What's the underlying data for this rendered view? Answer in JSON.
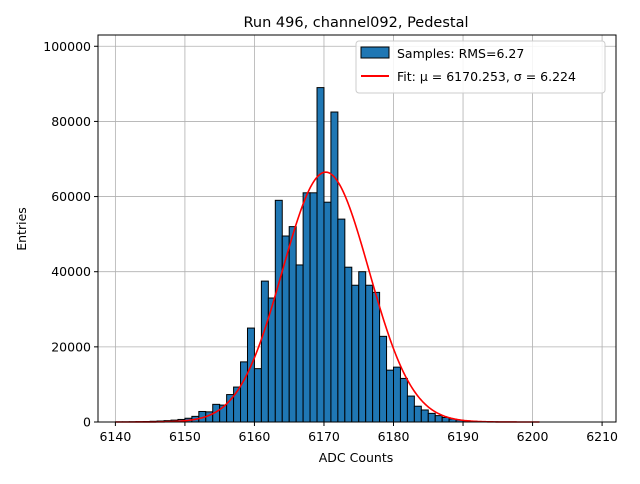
{
  "chart_data": {
    "type": "bar",
    "title": "Run 496, channel092, Pedestal",
    "xlabel": "ADC Counts",
    "ylabel": "Entries",
    "xlim": [
      6137.5,
      6212.0
    ],
    "ylim": [
      0,
      103000
    ],
    "xticks": [
      6140,
      6150,
      6160,
      6170,
      6180,
      6190,
      6200,
      6210
    ],
    "yticks": [
      0,
      20000,
      40000,
      60000,
      80000,
      100000
    ],
    "xtick_labels": [
      "6140",
      "6150",
      "6160",
      "6170",
      "6180",
      "6190",
      "6200",
      "6210"
    ],
    "ytick_labels": [
      "0",
      "20000",
      "40000",
      "60000",
      "80000",
      "100000"
    ],
    "grid": true,
    "legend_position": "top-right",
    "series": [
      {
        "name": "Samples: RMS=6.27",
        "type": "histogram",
        "color": "#1f77b4",
        "edgecolor": "#000000",
        "bin_width": 1,
        "bins": [
          [
            6140,
            30
          ],
          [
            6141,
            40
          ],
          [
            6142,
            60
          ],
          [
            6143,
            90
          ],
          [
            6144,
            130
          ],
          [
            6145,
            190
          ],
          [
            6146,
            260
          ],
          [
            6147,
            360
          ],
          [
            6148,
            500
          ],
          [
            6149,
            680
          ],
          [
            6150,
            1000
          ],
          [
            6151,
            1500
          ],
          [
            6152,
            2800
          ],
          [
            6153,
            2700
          ],
          [
            6154,
            4700
          ],
          [
            6155,
            4500
          ],
          [
            6156,
            7300
          ],
          [
            6157,
            9300
          ],
          [
            6158,
            16000
          ],
          [
            6159,
            25000
          ],
          [
            6160,
            14200
          ],
          [
            6161,
            37500
          ],
          [
            6162,
            33000
          ],
          [
            6163,
            59000
          ],
          [
            6164,
            49500
          ],
          [
            6165,
            52000
          ],
          [
            6166,
            41800
          ],
          [
            6167,
            61000
          ],
          [
            6168,
            61000
          ],
          [
            6169,
            89000
          ],
          [
            6170,
            58500
          ],
          [
            6171,
            82500
          ],
          [
            6172,
            54000
          ],
          [
            6173,
            41200
          ],
          [
            6174,
            36400
          ],
          [
            6175,
            40000
          ],
          [
            6176,
            36400
          ],
          [
            6177,
            34500
          ],
          [
            6178,
            22800
          ],
          [
            6179,
            13800
          ],
          [
            6180,
            14600
          ],
          [
            6181,
            11600
          ],
          [
            6182,
            6900
          ],
          [
            6183,
            4200
          ],
          [
            6184,
            3200
          ],
          [
            6185,
            2300
          ],
          [
            6186,
            1700
          ],
          [
            6187,
            1200
          ],
          [
            6188,
            800
          ],
          [
            6189,
            520
          ],
          [
            6190,
            330
          ],
          [
            6191,
            200
          ],
          [
            6192,
            120
          ],
          [
            6193,
            70
          ],
          [
            6194,
            40
          ]
        ]
      },
      {
        "name": "Fit: μ = 6170.253, σ = 6.224",
        "type": "line",
        "color": "#ff0000",
        "function": "gaussian",
        "amplitude": 66500,
        "mu": 6170.253,
        "sigma": 6.224,
        "x_range": [
          6140,
          6201
        ]
      }
    ]
  }
}
